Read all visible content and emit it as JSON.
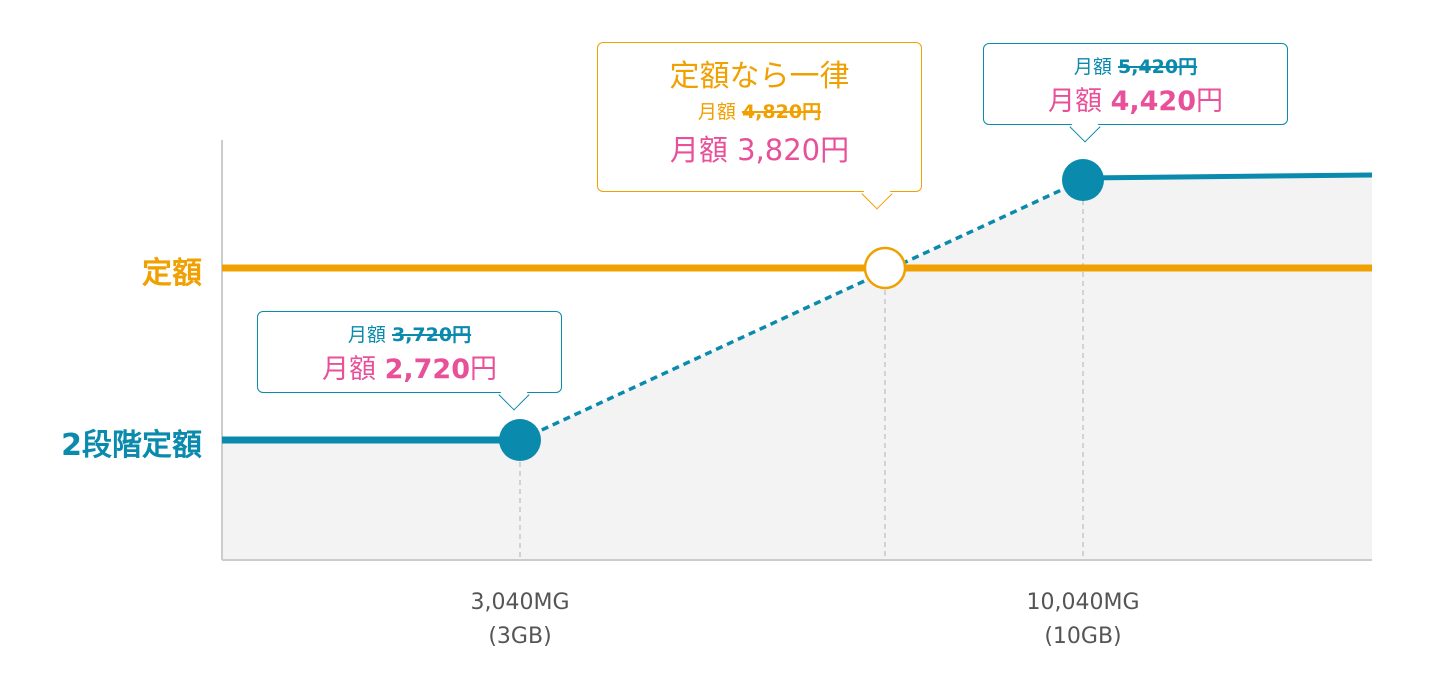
{
  "colors": {
    "teal": "#0a8aac",
    "orange": "#f0a000",
    "pink": "#e8509a",
    "fill": "#f3f3f3"
  },
  "y_labels": {
    "teiga": "定額",
    "two_step": "2段階定額"
  },
  "x_labels": [
    {
      "line1": "3,040MG",
      "line2": "(3GB)"
    },
    {
      "line1": "10,040MG",
      "line2": "(10GB)"
    }
  ],
  "callouts": {
    "low": {
      "prefix": "月額",
      "old_price": "3,720",
      "old_unit": "円",
      "new_prefix": "月額",
      "new_price": "2,720",
      "new_unit": "円"
    },
    "flat": {
      "title": "定額なら一律",
      "prefix": "月額",
      "old_price": "4,820",
      "old_unit": "円",
      "new_text": "月額 3,820円"
    },
    "high": {
      "prefix": "月額",
      "old_price": "5,420",
      "old_unit": "円",
      "new_prefix": "月額",
      "new_price": "4,420",
      "new_unit": "円"
    }
  },
  "chart_data": {
    "type": "line",
    "series": [
      {
        "name": "定額",
        "values": [
          4820,
          4820,
          4820,
          4820
        ]
      },
      {
        "name": "2段階定額",
        "values": [
          3720,
          3720,
          5420,
          5420
        ]
      }
    ],
    "x_ticks": [
      "3,040MG (3GB)",
      "10,040MG (10GB)"
    ]
  }
}
